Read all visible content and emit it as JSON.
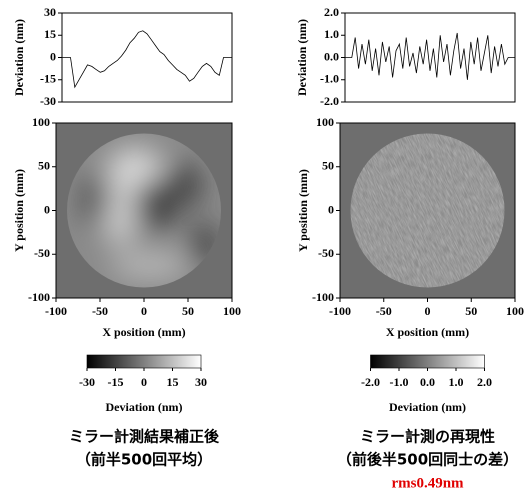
{
  "chart_data": [
    {
      "type": "line",
      "ylabel": "Deviation (nm)",
      "color": "#000000",
      "xlim": [
        -100,
        100
      ],
      "ylim": [
        -30,
        30
      ],
      "yticks": [
        -30,
        -15,
        0,
        15,
        30
      ],
      "x": [
        -100,
        -95,
        -90,
        -85,
        -80,
        -75,
        -70,
        -65,
        -60,
        -55,
        -50,
        -45,
        -40,
        -35,
        -30,
        -25,
        -20,
        -15,
        -10,
        -5,
        0,
        5,
        10,
        15,
        20,
        25,
        30,
        35,
        40,
        45,
        50,
        55,
        60,
        65,
        70,
        75,
        80,
        85,
        90,
        95,
        100
      ],
      "values": [
        0,
        0,
        0,
        -20,
        -15,
        -10,
        -5,
        -6,
        -8,
        -10,
        -9,
        -6,
        -4,
        -2,
        1,
        5,
        10,
        13,
        17,
        18,
        16,
        12,
        8,
        4,
        2,
        -2,
        -5,
        -8,
        -10,
        -12,
        -16,
        -14,
        -10,
        -6,
        -4,
        -6,
        -10,
        -12,
        0,
        0,
        0
      ]
    },
    {
      "type": "line",
      "ylabel": "Deviation (nm)",
      "color": "#000000",
      "xlim": [
        -100,
        100
      ],
      "ylim": [
        -2,
        2
      ],
      "yticks": [
        {
          "value": -2,
          "label": "-2.0"
        },
        {
          "value": -1,
          "label": "-1.0"
        },
        {
          "value": 0,
          "label": "0.0"
        },
        {
          "value": 1,
          "label": "1.0"
        },
        {
          "value": 2,
          "label": "2.0"
        }
      ],
      "x": [
        -100,
        -96,
        -92,
        -88,
        -84,
        -80,
        -76,
        -72,
        -68,
        -64,
        -60,
        -56,
        -52,
        -48,
        -44,
        -40,
        -36,
        -32,
        -28,
        -24,
        -20,
        -16,
        -12,
        -8,
        -4,
        0,
        4,
        8,
        12,
        16,
        20,
        24,
        28,
        32,
        36,
        40,
        44,
        48,
        52,
        56,
        60,
        64,
        68,
        72,
        76,
        80,
        84,
        88,
        92,
        96,
        100
      ],
      "values": [
        0,
        0,
        0,
        0.9,
        -0.5,
        0.6,
        -0.3,
        0.8,
        -0.6,
        0.4,
        -0.8,
        0.7,
        -0.2,
        0.5,
        -0.9,
        0.3,
        0.6,
        -0.5,
        0.9,
        -0.4,
        0.2,
        -0.7,
        0.5,
        -0.3,
        0.8,
        -0.6,
        0.4,
        -0.9,
        1.0,
        -0.2,
        0.6,
        -0.8,
        0.3,
        1.1,
        -0.5,
        0.4,
        -1.0,
        0.7,
        -0.3,
        0.9,
        -0.6,
        0.2,
        1.0,
        -0.7,
        0.5,
        -0.4,
        0.6,
        -0.3,
        0,
        0,
        0
      ]
    },
    {
      "type": "heatmap",
      "xlabel": "X position (mm)",
      "ylabel": "Y position (mm)",
      "xlim": [
        -100,
        100
      ],
      "ylim": [
        -100,
        100
      ],
      "xticks": [
        -100,
        -50,
        0,
        50,
        100
      ],
      "yticks": [
        -100,
        -50,
        0,
        50,
        100
      ],
      "colorbar": {
        "label": "Deviation (nm)",
        "lim": [
          -30,
          30
        ],
        "ticks": [
          -30,
          -15,
          0,
          15,
          30
        ]
      },
      "caption": [
        "ミラー計測結果補正後",
        "（前半500回平均）"
      ]
    },
    {
      "type": "heatmap",
      "xlabel": "X position (mm)",
      "ylabel": "Y position (mm)",
      "xlim": [
        -100,
        100
      ],
      "ylim": [
        -100,
        100
      ],
      "xticks": [
        -100,
        -50,
        0,
        50,
        100
      ],
      "yticks": [
        -100,
        -50,
        0,
        50,
        100
      ],
      "colorbar": {
        "label": "Deviation (nm)",
        "lim": [
          -2,
          2
        ],
        "ticks": [
          {
            "value": -2,
            "label": "-2.0"
          },
          {
            "value": -1,
            "label": "-1.0"
          },
          {
            "value": 0,
            "label": "0.0"
          },
          {
            "value": 1,
            "label": "1.0"
          },
          {
            "value": 2,
            "label": "2.0"
          }
        ]
      },
      "caption": [
        "ミラー計測の再現性",
        "（前後半500回同士の差）"
      ],
      "annotation": "rms0.49nm"
    }
  ]
}
